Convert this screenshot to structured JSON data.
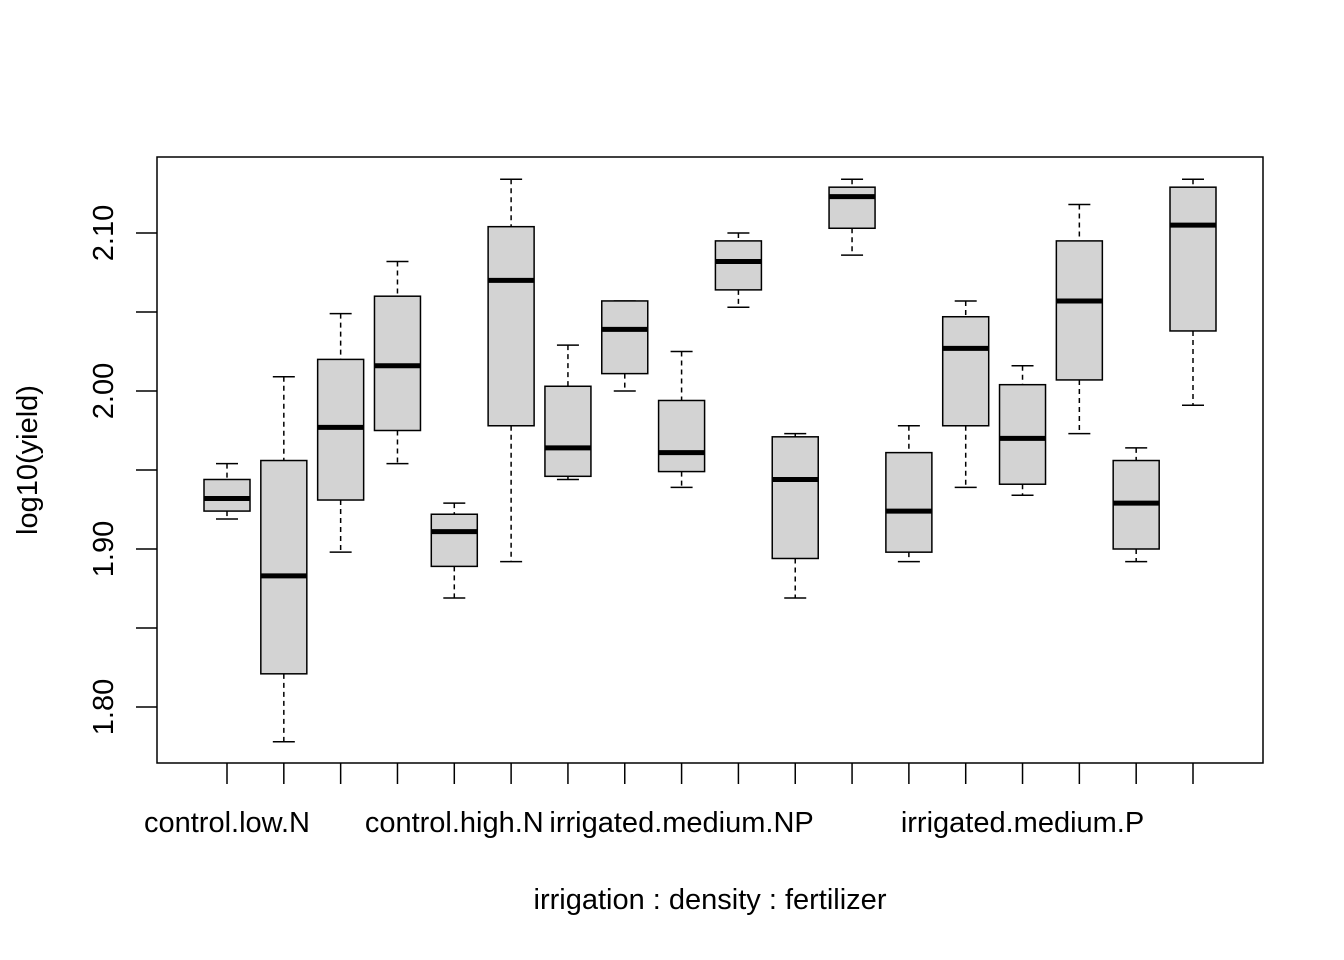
{
  "chart_data": {
    "type": "boxplot",
    "title": "",
    "xlabel": "irrigation : density : fertilizer",
    "ylabel": "log10(yield)",
    "ylim": [
      1.765,
      2.148
    ],
    "yticks": [
      1.8,
      1.85,
      1.9,
      1.95,
      2.0,
      2.05,
      2.1
    ],
    "ytick_labels": [
      "1.80",
      "",
      "1.90",
      "",
      "2.00",
      "",
      "2.10"
    ],
    "xtick_labels": [
      {
        "label": "control.low.N",
        "index": 1
      },
      {
        "label": "control.high.N",
        "index": 5
      },
      {
        "label": "irrigated.medium.NP",
        "index": 9
      },
      {
        "label": "irrigated.medium.P",
        "index": 15
      }
    ],
    "box_fill": "#d3d3d3",
    "grid": false,
    "boxes": [
      {
        "min": 1.919,
        "q1": 1.924,
        "median": 1.932,
        "q3": 1.944,
        "max": 1.954
      },
      {
        "min": 1.778,
        "q1": 1.821,
        "median": 1.883,
        "q3": 1.956,
        "max": 2.009
      },
      {
        "min": 1.898,
        "q1": 1.931,
        "median": 1.977,
        "q3": 2.02,
        "max": 2.049
      },
      {
        "min": 1.954,
        "q1": 1.975,
        "median": 2.016,
        "q3": 2.06,
        "max": 2.082
      },
      {
        "min": 1.869,
        "q1": 1.889,
        "median": 1.911,
        "q3": 1.922,
        "max": 1.929
      },
      {
        "min": 1.892,
        "q1": 1.978,
        "median": 2.07,
        "q3": 2.104,
        "max": 2.134
      },
      {
        "min": 1.944,
        "q1": 1.946,
        "median": 1.964,
        "q3": 2.003,
        "max": 2.029
      },
      {
        "min": 2.0,
        "q1": 2.011,
        "median": 2.039,
        "q3": 2.057,
        "max": 2.057
      },
      {
        "min": 1.939,
        "q1": 1.949,
        "median": 1.961,
        "q3": 1.994,
        "max": 2.025
      },
      {
        "min": 2.053,
        "q1": 2.064,
        "median": 2.082,
        "q3": 2.095,
        "max": 2.1
      },
      {
        "min": 1.869,
        "q1": 1.894,
        "median": 1.944,
        "q3": 1.971,
        "max": 1.973
      },
      {
        "min": 2.086,
        "q1": 2.103,
        "median": 2.123,
        "q3": 2.129,
        "max": 2.134
      },
      {
        "min": 1.892,
        "q1": 1.898,
        "median": 1.924,
        "q3": 1.961,
        "max": 1.978
      },
      {
        "min": 1.939,
        "q1": 1.978,
        "median": 2.027,
        "q3": 2.047,
        "max": 2.057
      },
      {
        "min": 1.934,
        "q1": 1.941,
        "median": 1.97,
        "q3": 2.004,
        "max": 2.016
      },
      {
        "min": 1.973,
        "q1": 2.007,
        "median": 2.057,
        "q3": 2.095,
        "max": 2.118
      },
      {
        "min": 1.892,
        "q1": 1.9,
        "median": 1.929,
        "q3": 1.956,
        "max": 1.964
      },
      {
        "min": 1.991,
        "q1": 2.038,
        "median": 2.105,
        "q3": 2.129,
        "max": 2.134
      }
    ]
  }
}
